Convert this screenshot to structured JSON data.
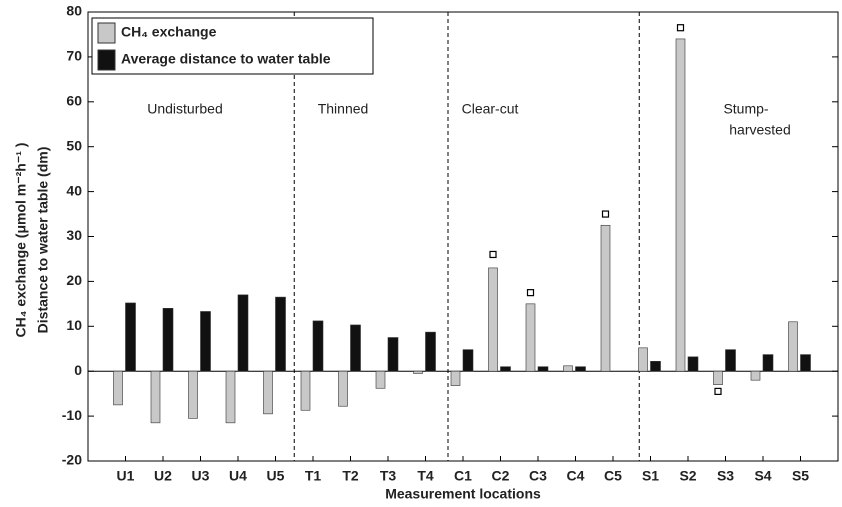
{
  "chart_data": {
    "type": "bar",
    "xlabel": "Measurement locations",
    "ylabel": [
      "CH₄ exchange (μmol m⁻²h⁻¹ )",
      "Distance to water table (dm)"
    ],
    "categories": [
      "U1",
      "U2",
      "U3",
      "U4",
      "U5",
      "T1",
      "T2",
      "T3",
      "T4",
      "C1",
      "C2",
      "C3",
      "C4",
      "C5",
      "S1",
      "S2",
      "S3",
      "S4",
      "S5"
    ],
    "series": [
      {
        "name": "CH₄ exchange",
        "color": "#c8c8c8",
        "values": [
          -7.5,
          -11.5,
          -10.5,
          -11.5,
          -9.5,
          -8.7,
          -7.8,
          -3.8,
          -0.5,
          -3.2,
          23,
          15,
          1.2,
          32.5,
          5.2,
          74,
          -3,
          -2,
          11
        ]
      },
      {
        "name": "Average distance to water table",
        "color": "#111111",
        "values": [
          15.2,
          14,
          13.3,
          17,
          16.5,
          11.2,
          10.3,
          7.5,
          8.7,
          4.8,
          1,
          1,
          1,
          null,
          2.2,
          3.2,
          4.8,
          3.7,
          3.7
        ]
      }
    ],
    "marker_values": [
      null,
      null,
      null,
      null,
      null,
      null,
      null,
      null,
      null,
      null,
      26,
      17.5,
      null,
      35,
      null,
      76.5,
      -4.5,
      null,
      null
    ],
    "group_labels": [
      "Undisturbed",
      "Thinned",
      "Clear-cut",
      "Stump-",
      "harvested"
    ],
    "ylim": [
      -20,
      80
    ],
    "yticks": [
      -20,
      -10,
      0,
      10,
      20,
      30,
      40,
      50,
      60,
      70,
      80
    ],
    "legend": "upper left"
  }
}
